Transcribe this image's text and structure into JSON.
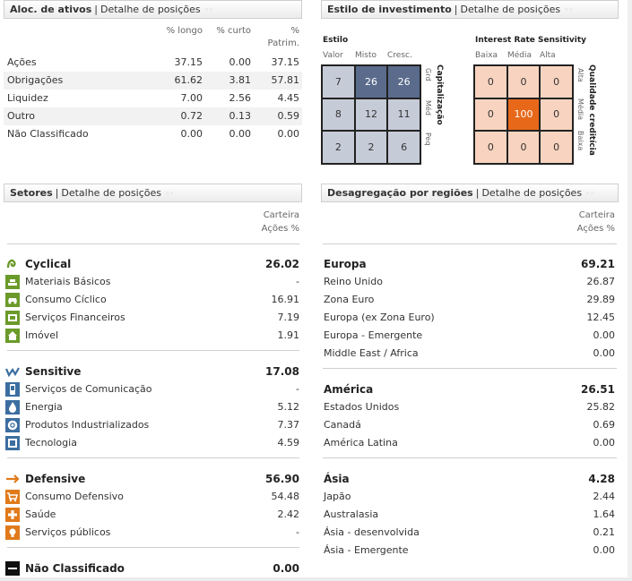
{
  "aloc": {
    "title": "Aloc. de ativos",
    "link": "Detalhe de posições",
    "headers": [
      "% longo",
      "% curto",
      "%",
      "Patrim."
    ],
    "rows": [
      {
        "label": "Ações",
        "longo": "37.15",
        "curto": "0.00",
        "patrim": "37.15"
      },
      {
        "label": "Obrigações",
        "longo": "61.62",
        "curto": "3.81",
        "patrim": "57.81"
      },
      {
        "label": "Liquidez",
        "longo": "7.00",
        "curto": "2.56",
        "patrim": "4.45"
      },
      {
        "label": "Outro",
        "longo": "0.72",
        "curto": "0.13",
        "patrim": "0.59"
      },
      {
        "label": "Não Classificado",
        "longo": "0.00",
        "curto": "0.00",
        "patrim": "0.00"
      }
    ]
  },
  "estilo": {
    "title": "Estilo de investimento",
    "link": "Detalhe de posições",
    "equity": {
      "title": "Estilo",
      "cols": [
        "Valor",
        "Misto",
        "Cresc."
      ],
      "rows": [
        "Grd",
        "Méd",
        "Peq"
      ],
      "side_title": "Capitalização",
      "values": [
        "7",
        "26",
        "26",
        "8",
        "12",
        "11",
        "2",
        "2",
        "6"
      ]
    },
    "fixed": {
      "title": "Interest Rate Sensitivity",
      "cols": [
        "Baixa",
        "Média",
        "Alta"
      ],
      "rows": [
        "Alta",
        "Média",
        "Baixa"
      ],
      "side_title": "Qualidade creditícia",
      "values": [
        "0",
        "0",
        "0",
        "0",
        "100",
        "0",
        "0",
        "0",
        "0"
      ]
    }
  },
  "setores": {
    "title": "Setores",
    "link": "Detalhe de posições",
    "col_header_1": "Carteira",
    "col_header_2": "Ações %",
    "groups": [
      {
        "name": "Cyclical",
        "value": "26.02",
        "icon": "cyclical-icon",
        "items": [
          {
            "name": "Materiais Básicos",
            "value": "-",
            "icon": "basic-materials-icon"
          },
          {
            "name": "Consumo Cíclico",
            "value": "16.91",
            "icon": "consumer-cyclical-icon"
          },
          {
            "name": "Serviços Financeiros",
            "value": "7.19",
            "icon": "financial-services-icon"
          },
          {
            "name": "Imóvel",
            "value": "1.91",
            "icon": "real-estate-icon"
          }
        ]
      },
      {
        "name": "Sensitive",
        "value": "17.08",
        "icon": "sensitive-icon",
        "items": [
          {
            "name": "Serviços de Comunicação",
            "value": "-",
            "icon": "communication-icon"
          },
          {
            "name": "Energia",
            "value": "5.12",
            "icon": "energy-icon"
          },
          {
            "name": "Produtos Industrializados",
            "value": "7.37",
            "icon": "industrials-icon"
          },
          {
            "name": "Tecnologia",
            "value": "4.59",
            "icon": "technology-icon"
          }
        ]
      },
      {
        "name": "Defensive",
        "value": "56.90",
        "icon": "defensive-icon",
        "items": [
          {
            "name": "Consumo Defensivo",
            "value": "54.48",
            "icon": "consumer-defensive-icon"
          },
          {
            "name": "Saúde",
            "value": "2.42",
            "icon": "healthcare-icon"
          },
          {
            "name": "Serviços públicos",
            "value": "-",
            "icon": "utilities-icon"
          }
        ]
      }
    ],
    "unclassified": {
      "name": "Não Classificado",
      "value": "0.00"
    }
  },
  "regioes": {
    "title": "Desagregação por regiões",
    "link": "Detalhe de posições",
    "col_header_1": "Carteira",
    "col_header_2": "Ações %",
    "groups": [
      {
        "name": "Europa",
        "value": "69.21",
        "items": [
          {
            "name": "Reino Unido",
            "value": "26.87"
          },
          {
            "name": "Zona Euro",
            "value": "29.89"
          },
          {
            "name": "Europa (ex Zona Euro)",
            "value": "12.45"
          },
          {
            "name": "Europa - Emergente",
            "value": "0.00"
          },
          {
            "name": "Middle East / Africa",
            "value": "0.00"
          }
        ]
      },
      {
        "name": "América",
        "value": "26.51",
        "items": [
          {
            "name": "Estados Unidos",
            "value": "25.82"
          },
          {
            "name": "Canadá",
            "value": "0.69"
          },
          {
            "name": "América Latina",
            "value": "0.00"
          }
        ]
      },
      {
        "name": "Ásia",
        "value": "4.28",
        "items": [
          {
            "name": "Japão",
            "value": "2.44"
          },
          {
            "name": "Australasia",
            "value": "1.64"
          },
          {
            "name": "Ásia - desenvolvida",
            "value": "0.21"
          },
          {
            "name": "Ásia - Emergente",
            "value": "0.00"
          }
        ]
      }
    ]
  },
  "colors": {
    "cyclical": "#6b9a2a",
    "sensitive": "#3c6ea0",
    "defensive": "#e07a1a",
    "equity_dark": "#5a6b8c",
    "equity_light": "#c6cbd8",
    "fixed_highlight": "#e8681a",
    "fixed_light": "#f8d4c0"
  }
}
